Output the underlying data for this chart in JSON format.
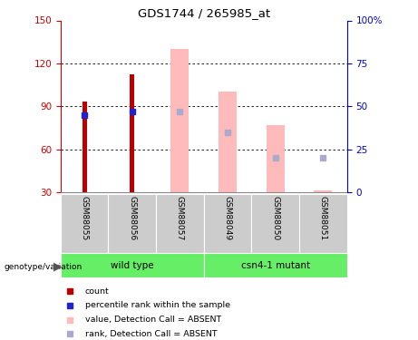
{
  "title": "GDS1744 / 265985_at",
  "samples": [
    "GSM88055",
    "GSM88056",
    "GSM88057",
    "GSM88049",
    "GSM88050",
    "GSM88051"
  ],
  "ylim_left": [
    30,
    150
  ],
  "ylim_right": [
    0,
    100
  ],
  "yticks_left": [
    30,
    60,
    90,
    120,
    150
  ],
  "yticks_right": [
    0,
    25,
    50,
    75,
    100
  ],
  "ytick_labels_right": [
    "0",
    "25",
    "50",
    "75",
    "100%"
  ],
  "bar_bottom": 30,
  "red_bars": {
    "GSM88055": 93,
    "GSM88056": 112
  },
  "blue_squares_pct": {
    "GSM88055": 45,
    "GSM88056": 47
  },
  "pink_bars": {
    "GSM88057": 130,
    "GSM88049": 100,
    "GSM88050": 77,
    "GSM88051": 31
  },
  "light_blue_squares_pct": {
    "GSM88057": 47,
    "GSM88049": 35,
    "GSM88050": 20,
    "GSM88051": 20
  },
  "colors": {
    "red_bar": "#bb0000",
    "blue_square": "#2222cc",
    "pink_bar": "#ffbbbb",
    "light_blue_square": "#aaaacc",
    "left_axis": "#cc0000",
    "right_axis": "#0000cc"
  },
  "groups": [
    {
      "label": "wild type",
      "start": 0,
      "end": 3,
      "color": "#88ee88"
    },
    {
      "label": "csn4-1 mutant",
      "start": 3,
      "end": 6,
      "color": "#88ee88"
    }
  ],
  "legend_items": [
    {
      "label": "count",
      "color": "#bb0000"
    },
    {
      "label": "percentile rank within the sample",
      "color": "#2222cc"
    },
    {
      "label": "value, Detection Call = ABSENT",
      "color": "#ffbbbb"
    },
    {
      "label": "rank, Detection Call = ABSENT",
      "color": "#aaaacc"
    }
  ]
}
